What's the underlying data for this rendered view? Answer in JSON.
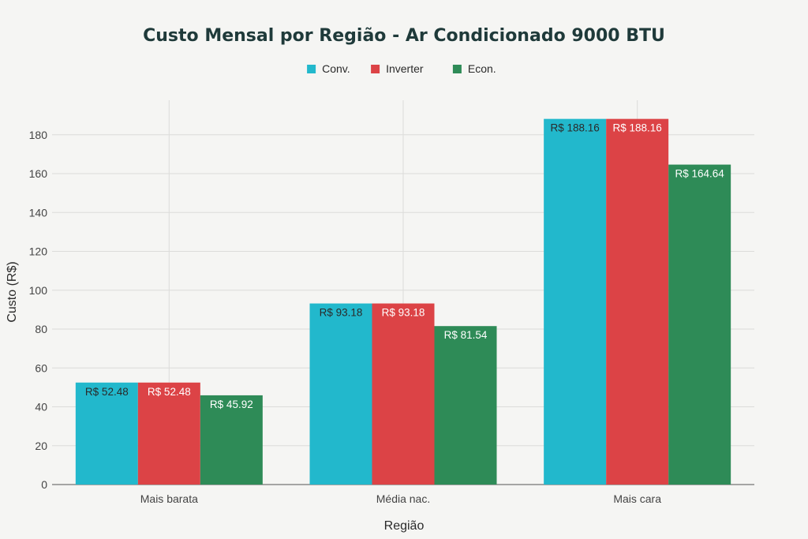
{
  "chart_data": {
    "type": "bar",
    "title": "Custo Mensal por Região - Ar Condicionado 9000 BTU",
    "xlabel": "Região",
    "ylabel": "Custo (R$)",
    "categories": [
      "Mais barata",
      "Média nac.",
      "Mais cara"
    ],
    "series": [
      {
        "name": "Conv.",
        "color": "#22b8cc",
        "values": [
          52.48,
          93.18,
          188.16
        ],
        "labels": [
          "R$ 52.48",
          "R$ 93.18",
          "R$ 188.16"
        ],
        "label_color": "#2a2a2a"
      },
      {
        "name": "Inverter",
        "color": "#dc4346",
        "values": [
          52.48,
          93.18,
          188.16
        ],
        "labels": [
          "R$ 52.48",
          "R$ 93.18",
          "R$ 188.16"
        ],
        "label_color": "#ffffff"
      },
      {
        "name": "Econ.",
        "color": "#2e8b57",
        "values": [
          45.92,
          81.54,
          164.64
        ],
        "labels": [
          "R$ 45.92",
          "R$ 81.54",
          "R$ 164.64"
        ],
        "label_color": "#ffffff"
      }
    ],
    "ylim": [
      0,
      197
    ],
    "yticks": [
      0,
      20,
      40,
      60,
      80,
      100,
      120,
      140,
      160,
      180
    ],
    "grid": true,
    "legend_position": "top-center"
  }
}
